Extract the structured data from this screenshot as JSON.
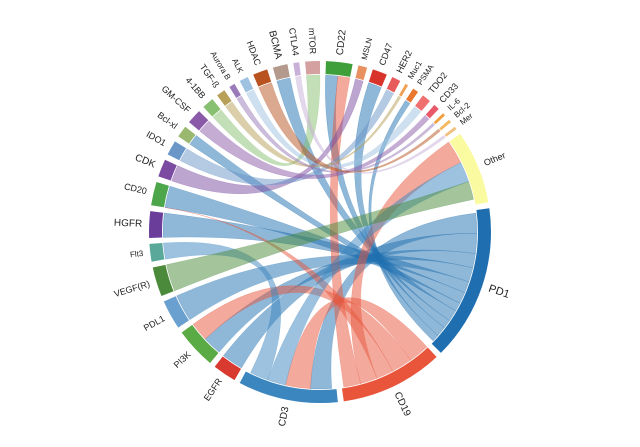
{
  "chart_data": {
    "type": "chord",
    "segments": [
      {
        "label": "PD1",
        "color": "#1f6fb0"
      },
      {
        "label": "CD19",
        "color": "#e8553b"
      },
      {
        "label": "CD3",
        "color": "#3b86bf"
      },
      {
        "label": "EGFR",
        "color": "#d93a2f"
      },
      {
        "label": "PI3K",
        "color": "#5aaa46"
      },
      {
        "label": "PDL1",
        "color": "#6aa0cf"
      },
      {
        "label": "VEGF(R)",
        "color": "#4a8a3a"
      },
      {
        "label": "Flt3",
        "color": "#5aa89a"
      },
      {
        "label": "HGFR",
        "color": "#6a3d9a"
      },
      {
        "label": "CD20",
        "color": "#4ea64a"
      },
      {
        "label": "CDK",
        "color": "#7a4ba0"
      },
      {
        "label": "IDO1",
        "color": "#6a96c8"
      },
      {
        "label": "Bcl-xl",
        "color": "#9ab870"
      },
      {
        "label": "GM-CSF",
        "color": "#8a5aa8"
      },
      {
        "label": "4-1BB",
        "color": "#86c070"
      },
      {
        "label": "TGF-ß",
        "color": "#b8a058"
      },
      {
        "label": "Aurora B",
        "color": "#9a7ab8"
      },
      {
        "label": "ALK",
        "color": "#9ec2e0"
      },
      {
        "label": "HDAC",
        "color": "#b8531f"
      },
      {
        "label": "BCMA",
        "color": "#b49a8c"
      },
      {
        "label": "CTLA4",
        "color": "#c8b0d8"
      },
      {
        "label": "mTOR",
        "color": "#d4a0a0"
      },
      {
        "label": "CD22",
        "color": "#3f9f3a"
      },
      {
        "label": "MSLN",
        "color": "#e89060"
      },
      {
        "label": "CD47",
        "color": "#d8342c"
      },
      {
        "label": "HER2",
        "color": "#e85a5a"
      },
      {
        "label": "Muc1",
        "color": "#f0a050"
      },
      {
        "label": "PSMA",
        "color": "#e87830"
      },
      {
        "label": "TDO2",
        "color": "#f07070"
      },
      {
        "label": "CD33",
        "color": "#e85a6a"
      },
      {
        "label": "IL-6",
        "color": "#f0a040"
      },
      {
        "label": "Bcl-2",
        "color": "#f5b860"
      },
      {
        "label": "Mer",
        "color": "#f0c080"
      },
      {
        "label": "Other",
        "color": "#fafaa0"
      }
    ]
  }
}
